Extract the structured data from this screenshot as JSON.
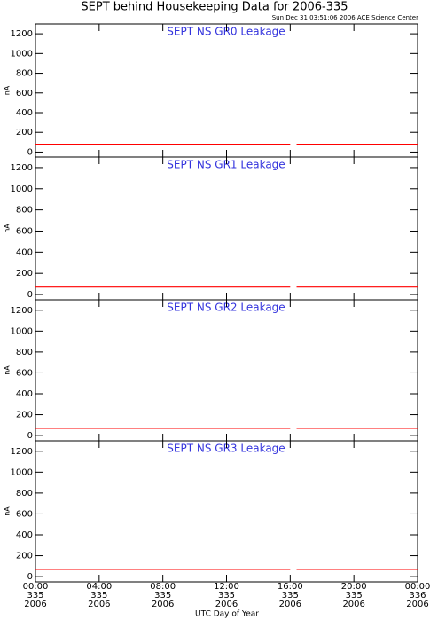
{
  "title": "SEPT behind Housekeeping Data for 2006-335",
  "timestamp": "Sun Dec 31 03:51:06 2006 ACE Science Center",
  "x_label": "UTC Day of Year",
  "xlim": [
    0,
    24
  ],
  "xticks": [
    {
      "value": 0,
      "label": "00:00",
      "day": "335",
      "year": "2006"
    },
    {
      "value": 4,
      "label": "04:00",
      "day": "335",
      "year": "2006"
    },
    {
      "value": 8,
      "label": "08:00",
      "day": "335",
      "year": "2006"
    },
    {
      "value": 12,
      "label": "12:00",
      "day": "335",
      "year": "2006"
    },
    {
      "value": 16,
      "label": "16:00",
      "day": "335",
      "year": "2006"
    },
    {
      "value": 20,
      "label": "20:00",
      "day": "335",
      "year": "2006"
    },
    {
      "value": 24,
      "label": "00:00",
      "day": "336",
      "year": "2006"
    }
  ],
  "chart_data": [
    {
      "type": "line",
      "title": "SEPT NS GR0 Leakage",
      "y_label": "nA",
      "ylim": [
        -50,
        1300
      ],
      "yticks": [
        0,
        200,
        400,
        600,
        800,
        1000,
        1200
      ],
      "x": [
        0,
        4,
        8,
        12,
        16,
        16.1,
        16.4,
        20,
        24
      ],
      "series": [
        {
          "color": "#ff0000",
          "values": [
            80,
            80,
            80,
            80,
            80,
            null,
            80,
            80,
            80
          ]
        }
      ]
    },
    {
      "type": "line",
      "title": "SEPT NS GR1 Leakage",
      "y_label": "nA",
      "ylim": [
        -50,
        1300
      ],
      "yticks": [
        0,
        200,
        400,
        600,
        800,
        1000,
        1200
      ],
      "x": [
        0,
        4,
        8,
        12,
        16,
        16.1,
        16.4,
        20,
        24
      ],
      "series": [
        {
          "color": "#ff0000",
          "values": [
            70,
            70,
            70,
            70,
            70,
            null,
            70,
            70,
            70
          ]
        }
      ]
    },
    {
      "type": "line",
      "title": "SEPT NS GR2 Leakage",
      "y_label": "nA",
      "ylim": [
        -50,
        1300
      ],
      "yticks": [
        0,
        200,
        400,
        600,
        800,
        1000,
        1200
      ],
      "x": [
        0,
        4,
        8,
        12,
        16,
        16.1,
        16.4,
        20,
        24
      ],
      "series": [
        {
          "color": "#ff0000",
          "values": [
            70,
            70,
            70,
            70,
            70,
            null,
            70,
            70,
            70
          ]
        }
      ]
    },
    {
      "type": "line",
      "title": "SEPT NS GR3 Leakage",
      "y_label": "nA",
      "ylim": [
        -50,
        1300
      ],
      "yticks": [
        0,
        200,
        400,
        600,
        800,
        1000,
        1200
      ],
      "x": [
        0,
        4,
        8,
        12,
        16,
        16.1,
        16.4,
        20,
        24
      ],
      "series": [
        {
          "color": "#ff0000",
          "values": [
            70,
            70,
            70,
            70,
            70,
            null,
            70,
            70,
            70
          ]
        }
      ]
    }
  ]
}
